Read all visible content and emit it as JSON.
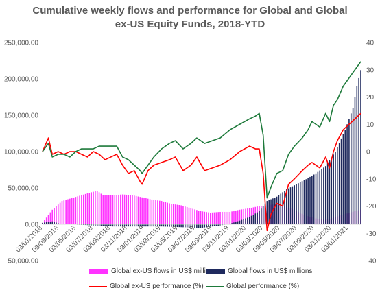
{
  "chart_data": {
    "type": "bar+line",
    "title_line1": "Cumulative weekly flows and performance for Global and Global",
    "title_line2": "ex-US Equity Funds, 2018-YTD",
    "left_axis": {
      "ticks": [
        250000,
        200000,
        150000,
        100000,
        50000,
        0,
        -50000
      ],
      "labels": [
        "250,000.00",
        "200,000.00",
        "150,000.00",
        "100,000.00",
        "50,000.00",
        "0.00",
        "-50,000.00"
      ],
      "ylim": [
        -50000,
        250000
      ]
    },
    "right_axis": {
      "ticks": [
        40,
        30,
        20,
        10,
        0,
        -10,
        -20,
        -30,
        -40
      ],
      "labels": [
        "40",
        "30",
        "20",
        "10",
        "0",
        "-10",
        "-20",
        "-30",
        "-40"
      ],
      "ylim": [
        -40,
        40
      ]
    },
    "x_labels": [
      "03/01/2018",
      "03/03/2018",
      "03/05/2018",
      "03/07/2018",
      "03/09/2018",
      "03/11/2018",
      "03/01/2019",
      "03/03/2019",
      "03/05/2019",
      "03/07/2019",
      "03/09/2019",
      "03/11/2019",
      "03/01/2020",
      "03/03/2020",
      "03/05/2020",
      "03/07/2020",
      "03/09/2020",
      "03/11/2020",
      "03/01/2021"
    ],
    "x_range": [
      "2018-01-03",
      "2021-02-17"
    ],
    "series": [
      {
        "name": "Global ex-US flows in US$ millions",
        "kind": "bar",
        "axis": "left",
        "color": "#ff33ff",
        "points": [
          [
            "2018-01-03",
            2000
          ],
          [
            "2018-02-07",
            20000
          ],
          [
            "2018-03-14",
            32000
          ],
          [
            "2018-04-18",
            36000
          ],
          [
            "2018-05-23",
            40000
          ],
          [
            "2018-06-27",
            44000
          ],
          [
            "2018-07-18",
            46000
          ],
          [
            "2018-08-08",
            40000
          ],
          [
            "2018-09-12",
            40000
          ],
          [
            "2018-10-17",
            41000
          ],
          [
            "2018-11-21",
            40000
          ],
          [
            "2018-12-26",
            37000
          ],
          [
            "2019-01-30",
            34000
          ],
          [
            "2019-03-06",
            32000
          ],
          [
            "2019-04-10",
            28000
          ],
          [
            "2019-05-15",
            26000
          ],
          [
            "2019-06-19",
            22000
          ],
          [
            "2019-07-24",
            18000
          ],
          [
            "2019-08-28",
            16000
          ],
          [
            "2019-10-02",
            17000
          ],
          [
            "2019-11-06",
            17000
          ],
          [
            "2019-12-11",
            20000
          ],
          [
            "2020-01-15",
            22000
          ],
          [
            "2020-02-19",
            25000
          ],
          [
            "2020-03-18",
            26000
          ],
          [
            "2020-04-22",
            28000
          ],
          [
            "2020-05-27",
            24000
          ],
          [
            "2020-07-01",
            18000
          ],
          [
            "2020-08-05",
            12000
          ],
          [
            "2020-09-09",
            8000
          ],
          [
            "2020-10-14",
            6000
          ],
          [
            "2020-11-18",
            10000
          ],
          [
            "2020-12-23",
            14000
          ],
          [
            "2021-01-27",
            18000
          ],
          [
            "2021-02-17",
            20000
          ]
        ]
      },
      {
        "name": "Global  flows in US$ millions",
        "kind": "bar",
        "axis": "left",
        "color": "#1f2a5e",
        "points": [
          [
            "2018-01-03",
            2000
          ],
          [
            "2018-02-07",
            4000
          ],
          [
            "2018-03-14",
            0
          ],
          [
            "2018-06-06",
            -1000
          ],
          [
            "2018-09-12",
            -3000
          ],
          [
            "2018-12-26",
            -3000
          ],
          [
            "2019-03-06",
            -3000
          ],
          [
            "2019-05-15",
            -4000
          ],
          [
            "2019-07-24",
            -5000
          ],
          [
            "2019-09-04",
            -3000
          ],
          [
            "2019-10-30",
            0
          ],
          [
            "2019-12-11",
            5000
          ],
          [
            "2020-01-15",
            10000
          ],
          [
            "2020-02-19",
            18000
          ],
          [
            "2020-03-18",
            32000
          ],
          [
            "2020-04-22",
            38000
          ],
          [
            "2020-05-27",
            48000
          ],
          [
            "2020-07-01",
            55000
          ],
          [
            "2020-08-05",
            62000
          ],
          [
            "2020-09-09",
            70000
          ],
          [
            "2020-10-14",
            80000
          ],
          [
            "2020-11-18",
            100000
          ],
          [
            "2020-12-23",
            130000
          ],
          [
            "2021-01-20",
            160000
          ],
          [
            "2021-02-03",
            190000
          ],
          [
            "2021-02-17",
            212000
          ]
        ]
      },
      {
        "name": "Global ex-US performance (%)",
        "kind": "line",
        "axis": "right",
        "color": "#ff0000",
        "points": [
          [
            "2018-01-03",
            0
          ],
          [
            "2018-01-24",
            5
          ],
          [
            "2018-02-07",
            -1
          ],
          [
            "2018-02-28",
            0
          ],
          [
            "2018-03-21",
            -1
          ],
          [
            "2018-04-11",
            0
          ],
          [
            "2018-05-02",
            0
          ],
          [
            "2018-05-23",
            -1
          ],
          [
            "2018-06-13",
            -2
          ],
          [
            "2018-07-04",
            0
          ],
          [
            "2018-07-25",
            -1
          ],
          [
            "2018-08-15",
            -3
          ],
          [
            "2018-09-05",
            -2
          ],
          [
            "2018-09-26",
            -1
          ],
          [
            "2018-10-17",
            -5
          ],
          [
            "2018-11-07",
            -8
          ],
          [
            "2018-11-28",
            -7
          ],
          [
            "2018-12-19",
            -11
          ],
          [
            "2018-12-26",
            -12
          ],
          [
            "2019-01-16",
            -7
          ],
          [
            "2019-02-06",
            -5
          ],
          [
            "2019-03-06",
            -4
          ],
          [
            "2019-04-03",
            -3
          ],
          [
            "2019-04-24",
            -2
          ],
          [
            "2019-05-22",
            -7
          ],
          [
            "2019-06-19",
            -5
          ],
          [
            "2019-07-10",
            -2
          ],
          [
            "2019-08-07",
            -7
          ],
          [
            "2019-09-04",
            -6
          ],
          [
            "2019-10-02",
            -5
          ],
          [
            "2019-11-06",
            -3
          ],
          [
            "2019-12-11",
            0
          ],
          [
            "2020-01-15",
            2
          ],
          [
            "2020-02-05",
            1
          ],
          [
            "2020-02-19",
            1
          ],
          [
            "2020-03-04",
            -8
          ],
          [
            "2020-03-18",
            -29
          ],
          [
            "2020-04-01",
            -23
          ],
          [
            "2020-04-22",
            -19
          ],
          [
            "2020-05-13",
            -20
          ],
          [
            "2020-06-03",
            -12
          ],
          [
            "2020-06-24",
            -10
          ],
          [
            "2020-07-22",
            -7
          ],
          [
            "2020-08-12",
            -5
          ],
          [
            "2020-08-26",
            -4
          ],
          [
            "2020-09-23",
            -6
          ],
          [
            "2020-10-14",
            -2
          ],
          [
            "2020-10-28",
            -6
          ],
          [
            "2020-11-11",
            0
          ],
          [
            "2020-11-25",
            4
          ],
          [
            "2020-12-16",
            8
          ],
          [
            "2021-01-06",
            10
          ],
          [
            "2021-01-27",
            12
          ],
          [
            "2021-02-17",
            14
          ]
        ]
      },
      {
        "name": "Global  performance (%)",
        "kind": "line",
        "axis": "right",
        "color": "#1e7a3b",
        "points": [
          [
            "2018-01-03",
            0
          ],
          [
            "2018-01-24",
            3
          ],
          [
            "2018-02-07",
            -2
          ],
          [
            "2018-02-28",
            -1
          ],
          [
            "2018-03-21",
            -1
          ],
          [
            "2018-04-11",
            -2
          ],
          [
            "2018-05-02",
            0
          ],
          [
            "2018-05-23",
            1
          ],
          [
            "2018-06-13",
            1
          ],
          [
            "2018-07-04",
            1
          ],
          [
            "2018-07-25",
            2
          ],
          [
            "2018-08-15",
            2
          ],
          [
            "2018-09-05",
            2
          ],
          [
            "2018-09-26",
            2
          ],
          [
            "2018-10-17",
            -2
          ],
          [
            "2018-11-07",
            -3
          ],
          [
            "2018-11-28",
            -5
          ],
          [
            "2018-12-19",
            -7
          ],
          [
            "2018-12-26",
            -8
          ],
          [
            "2019-01-16",
            -5
          ],
          [
            "2019-02-06",
            -2
          ],
          [
            "2019-03-06",
            1
          ],
          [
            "2019-04-03",
            3
          ],
          [
            "2019-04-24",
            4
          ],
          [
            "2019-05-22",
            1
          ],
          [
            "2019-06-19",
            3
          ],
          [
            "2019-07-10",
            5
          ],
          [
            "2019-08-07",
            3
          ],
          [
            "2019-09-04",
            4
          ],
          [
            "2019-10-02",
            5
          ],
          [
            "2019-11-06",
            8
          ],
          [
            "2019-12-11",
            10
          ],
          [
            "2020-01-15",
            12
          ],
          [
            "2020-02-05",
            13
          ],
          [
            "2020-02-19",
            14
          ],
          [
            "2020-03-04",
            6
          ],
          [
            "2020-03-18",
            -17
          ],
          [
            "2020-04-01",
            -13
          ],
          [
            "2020-04-22",
            -8
          ],
          [
            "2020-05-13",
            -7
          ],
          [
            "2020-06-03",
            -1
          ],
          [
            "2020-06-24",
            2
          ],
          [
            "2020-07-22",
            5
          ],
          [
            "2020-08-12",
            8
          ],
          [
            "2020-08-26",
            11
          ],
          [
            "2020-09-23",
            9
          ],
          [
            "2020-10-14",
            14
          ],
          [
            "2020-10-28",
            11
          ],
          [
            "2020-11-11",
            17
          ],
          [
            "2020-11-25",
            19
          ],
          [
            "2020-12-16",
            24
          ],
          [
            "2021-01-06",
            27
          ],
          [
            "2021-01-27",
            30
          ],
          [
            "2021-02-17",
            33
          ]
        ]
      }
    ],
    "legend": [
      "Global ex-US flows in US$ millions",
      "Global  flows in US$ millions",
      "Global ex-US performance (%)",
      "Global  performance (%)"
    ],
    "grid": false
  }
}
